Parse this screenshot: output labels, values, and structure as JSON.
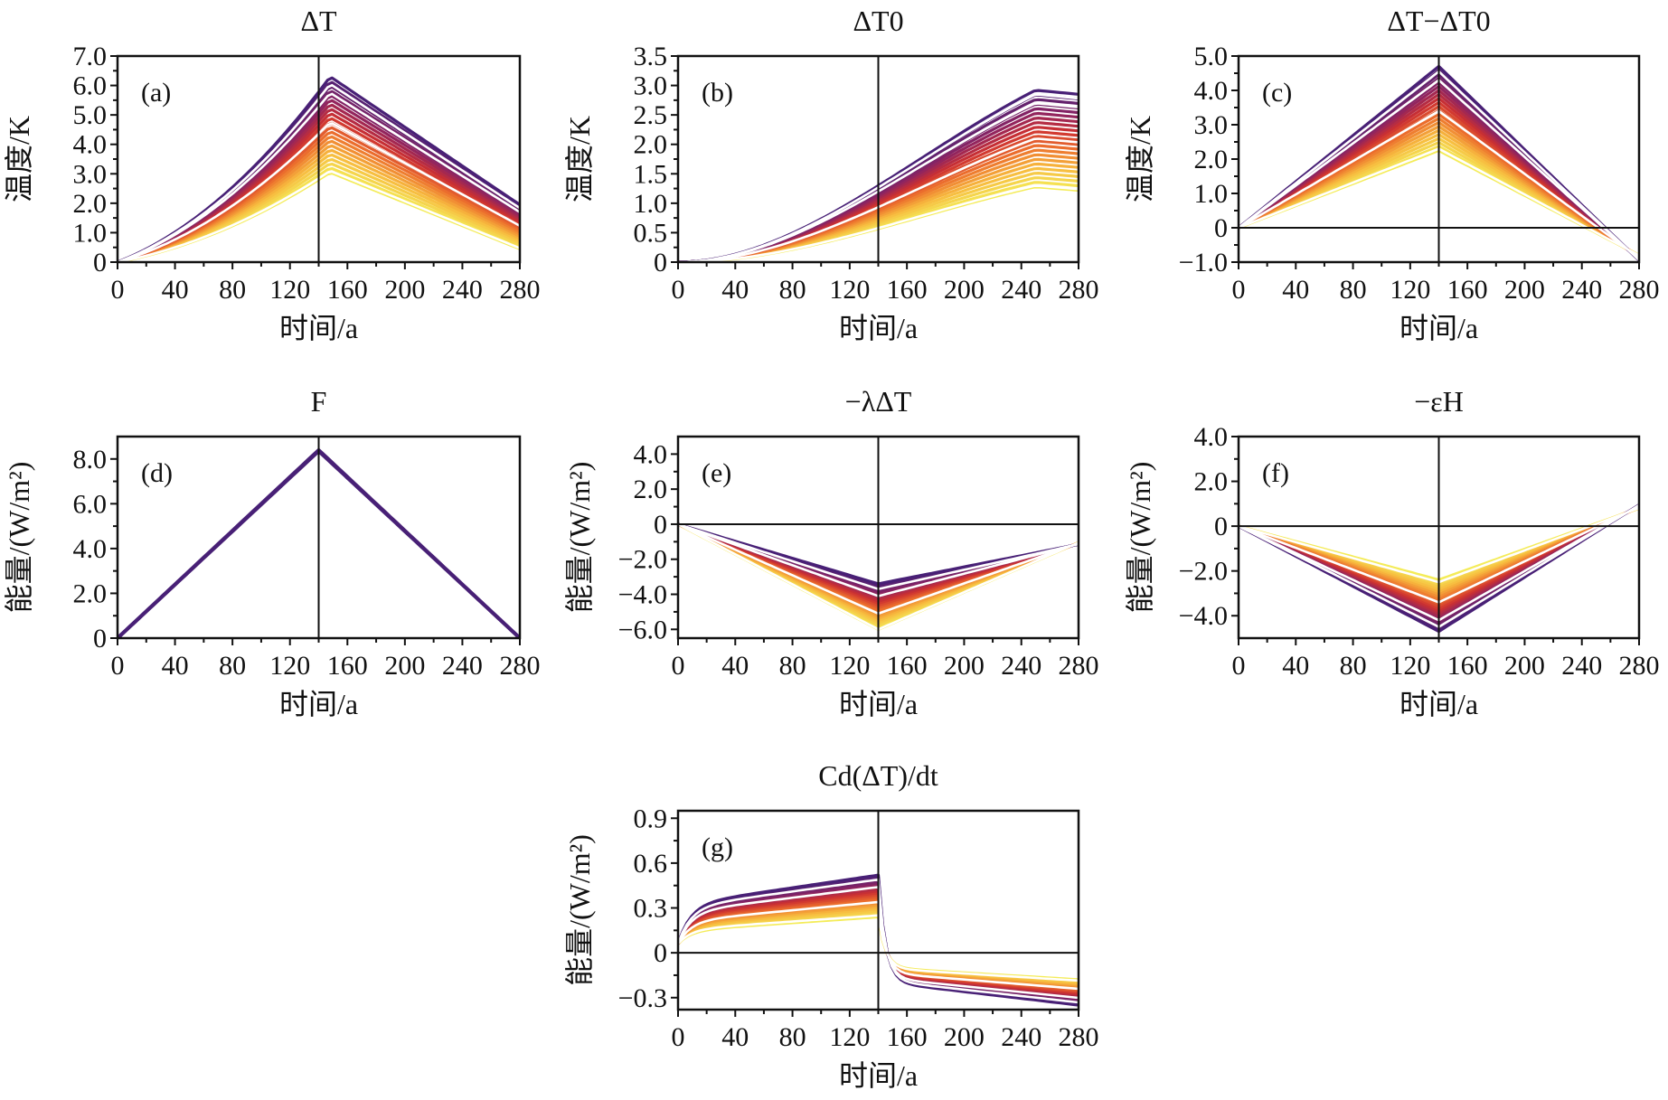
{
  "figure": {
    "xlabel": "时间/a"
  },
  "chart_data": [
    {
      "id": "a",
      "type": "line",
      "letter": "(a)",
      "title": "ΔT",
      "ylabel": "温度/K",
      "xlabel": "时间/a",
      "xlim": [
        0,
        280
      ],
      "ylim": [
        0,
        7
      ],
      "xticks": [
        0,
        40,
        80,
        120,
        160,
        200,
        240,
        280
      ],
      "yticks": [
        0,
        1,
        2,
        3,
        4,
        5,
        6,
        7
      ],
      "ytick_labels": [
        "0",
        "1.0",
        "2.0",
        "3.0",
        "4.0",
        "5.0",
        "6.0",
        "7.0"
      ],
      "vline": 140,
      "hline": null,
      "ensemble": {
        "kind": "heat",
        "members": 22,
        "x_peak": 148,
        "peak_min": 3.05,
        "peak_max": 6.3,
        "end_min": 0.45,
        "end_max": 1.95,
        "white_peaks": [
          3.1,
          4.75,
          5.75,
          6.05
        ]
      }
    },
    {
      "id": "b",
      "type": "line",
      "letter": "(b)",
      "title": "ΔT0",
      "ylabel": "温度/K",
      "xlabel": "时间/a",
      "xlim": [
        0,
        280
      ],
      "ylim": [
        0,
        3.5
      ],
      "xticks": [
        0,
        40,
        80,
        120,
        160,
        200,
        240,
        280
      ],
      "yticks": [
        0,
        0.5,
        1,
        1.5,
        2,
        2.5,
        3,
        3.5
      ],
      "ytick_labels": [
        "0",
        "0.5",
        "1.0",
        "1.5",
        "2.0",
        "2.5",
        "3.0",
        "3.5"
      ],
      "vline": 140,
      "hline": null,
      "ensemble": {
        "kind": "deep",
        "members": 22,
        "x_peak": 250,
        "peak_min": 1.28,
        "peak_max": 2.92,
        "end_min": 1.22,
        "end_max": 2.85,
        "white_peaks": [
          1.3,
          2.1,
          2.7,
          2.85
        ]
      }
    },
    {
      "id": "c",
      "type": "line",
      "letter": "(c)",
      "title": "ΔT−ΔT0",
      "ylabel": "温度/K",
      "xlabel": "时间/a",
      "xlim": [
        0,
        280
      ],
      "ylim": [
        -1,
        5
      ],
      "xticks": [
        0,
        40,
        80,
        120,
        160,
        200,
        240,
        280
      ],
      "yticks": [
        -1,
        0,
        1,
        2,
        3,
        4,
        5
      ],
      "ytick_labels": [
        "−1.0",
        "0",
        "1.0",
        "2.0",
        "3.0",
        "4.0",
        "5.0"
      ],
      "vline": 140,
      "hline": 0,
      "ensemble": {
        "kind": "tri",
        "members": 22,
        "x_peak": 140,
        "peak_min": 2.25,
        "peak_max": 4.7,
        "end_min": -0.8,
        "end_max": -0.95,
        "white_peaks": [
          2.3,
          3.4,
          4.3,
          4.55
        ]
      }
    },
    {
      "id": "d",
      "type": "line",
      "letter": "(d)",
      "title": "F",
      "ylabel": "能量/(W/m²)",
      "xlabel": "时间/a",
      "xlim": [
        0,
        280
      ],
      "ylim": [
        0,
        9
      ],
      "xticks": [
        0,
        40,
        80,
        120,
        160,
        200,
        240,
        280
      ],
      "yticks": [
        0,
        2,
        4,
        6,
        8
      ],
      "ytick_labels": [
        "0",
        "2.0",
        "4.0",
        "6.0",
        "8.0"
      ],
      "vline": 140,
      "hline": null,
      "ensemble": {
        "kind": "tri",
        "members": 3,
        "x_peak": 140,
        "peak_min": 8.35,
        "peak_max": 8.4,
        "end_min": 0.0,
        "end_max": 0.0,
        "white_peaks": []
      }
    },
    {
      "id": "e",
      "type": "line",
      "letter": "(e)",
      "title": "−λΔT",
      "ylabel": "能量/(W/m²)",
      "xlabel": "时间/a",
      "xlim": [
        0,
        280
      ],
      "ylim": [
        -6.5,
        5
      ],
      "xticks": [
        0,
        40,
        80,
        120,
        160,
        200,
        240,
        280
      ],
      "yticks": [
        -6,
        -4,
        -2,
        0,
        2,
        4
      ],
      "ytick_labels": [
        "−6.0",
        "−4.0",
        "−2.0",
        "0",
        "2.0",
        "4.0"
      ],
      "vline": 140,
      "hline": 0,
      "ensemble": {
        "kind": "tri",
        "members": 22,
        "x_peak": 140,
        "peak_min": -6.0,
        "peak_max": -3.4,
        "end_min": -1.05,
        "end_max": -1.15,
        "white_peaks": [
          -6.0,
          -5.1,
          -4.1,
          -3.7
        ]
      }
    },
    {
      "id": "f",
      "type": "line",
      "letter": "(f)",
      "title": "−εH",
      "ylabel": "能量/(W/m²)",
      "xlabel": "时间/a",
      "xlim": [
        0,
        280
      ],
      "ylim": [
        -5,
        4
      ],
      "xticks": [
        0,
        40,
        80,
        120,
        160,
        200,
        240,
        280
      ],
      "yticks": [
        -4,
        -2,
        0,
        2,
        4
      ],
      "ytick_labels": [
        "−4.0",
        "−2.0",
        "0",
        "2.0",
        "4.0"
      ],
      "vline": 140,
      "hline": 0,
      "ensemble": {
        "kind": "tri",
        "members": 22,
        "x_peak": 140,
        "peak_min": -2.4,
        "peak_max": -4.7,
        "end_min": 0.8,
        "end_max": 0.95,
        "white_peaks": [
          -2.5,
          -3.4,
          -4.2,
          -4.5
        ]
      }
    },
    {
      "id": "g",
      "type": "line",
      "letter": "(g)",
      "title": "Cd(ΔT)/dt",
      "ylabel": "能量/(W/m²)",
      "xlabel": "时间/a",
      "xlim": [
        0,
        280
      ],
      "ylim": [
        -0.38,
        0.95
      ],
      "xticks": [
        0,
        40,
        80,
        120,
        160,
        200,
        240,
        280
      ],
      "yticks": [
        -0.3,
        0,
        0.3,
        0.6,
        0.9
      ],
      "ytick_labels": [
        "−0.3",
        "0",
        "0.3",
        "0.6",
        "0.9"
      ],
      "vline": 140,
      "hline": 0,
      "ensemble": {
        "kind": "rate",
        "members": 22,
        "x_peak": 140,
        "peak_min": 0.24,
        "peak_max": 0.52,
        "end_min": -0.18,
        "end_max": -0.35,
        "white_peaks": [
          0.25,
          0.34,
          0.44,
          0.49
        ]
      }
    }
  ]
}
